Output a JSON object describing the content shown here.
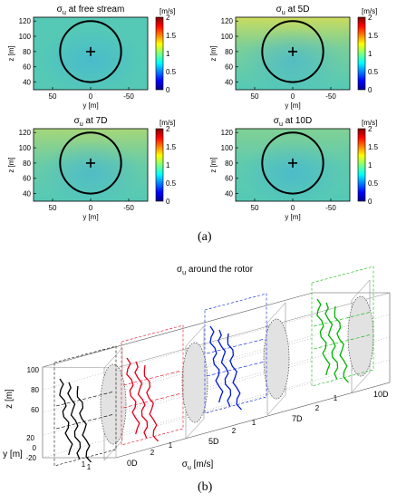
{
  "colors": {
    "field_base": "#55c9b6",
    "panel_top_tint": "#b7d96a",
    "panel_top_tint_strong": "#d9de52",
    "panel_center_tint": "#3fb0de",
    "circle": "#000000",
    "plane_fill": "#e2e2e2",
    "series_colors": [
      "#000000",
      "#e4001b",
      "#0018d6",
      "#00b400"
    ]
  },
  "colorbar": {
    "unit": "[m/s]",
    "ticks": [
      "2",
      "1.5",
      "1",
      "0.5",
      "0"
    ],
    "range": [
      0,
      2
    ],
    "colormap": "jet"
  },
  "panel_a": {
    "label": "(a)",
    "xlabel": "y [m]",
    "ylabel": "z [m]",
    "yticks": [
      "120",
      "100",
      "80",
      "60",
      "40"
    ],
    "xticks": [
      "50",
      "0",
      "-50"
    ],
    "panels": [
      {
        "title_sym": "σ",
        "title_sub": "u",
        "title_rest": " at free stream",
        "tint": "none"
      },
      {
        "title_sym": "σ",
        "title_sub": "u",
        "title_rest": " at 5D",
        "tint": "strong"
      },
      {
        "title_sym": "σ",
        "title_sub": "u",
        "title_rest": " at 7D",
        "tint": "medium"
      },
      {
        "title_sym": "σ",
        "title_sub": "u",
        "title_rest": " at 10D",
        "tint": "light"
      }
    ]
  },
  "panel_b": {
    "label": "(b)",
    "title_sym": "σ",
    "title_sub": "u",
    "title_rest": " around the rotor",
    "zlabel": "z [m]",
    "zticks": [
      "100",
      "80",
      "60"
    ],
    "ylabel": "y [m]",
    "yticks": [
      "20",
      "0",
      "-20"
    ],
    "xlabel_sym": "σ",
    "xlabel_sub": "u",
    "xlabel_rest": " [m/s]",
    "stations": [
      {
        "label": "0D",
        "tick_left": "1",
        "tick_right": "2",
        "color": "#000000"
      },
      {
        "label": "5D",
        "tick_left": "1",
        "tick_right": "2",
        "color": "#e4001b"
      },
      {
        "label": "7D",
        "tick_left": "1",
        "tick_right": "2",
        "color": "#0018d6"
      },
      {
        "label": "10D",
        "tick_left": "1",
        "tick_right": "",
        "color": "#00b400"
      }
    ]
  },
  "chart_data": {
    "type": "heatmap",
    "panel_a": {
      "x_axis": {
        "label": "y [m]",
        "range": [
          75,
          -75
        ],
        "ticks": [
          50,
          0,
          -50
        ]
      },
      "y_axis": {
        "label": "z [m]",
        "range": [
          30,
          125
        ],
        "ticks": [
          40,
          60,
          80,
          100,
          120
        ]
      },
      "colorbar_range": [
        0,
        2
      ],
      "rotor_circle": {
        "center_y": 0,
        "center_z": 80,
        "radius": 40
      },
      "panels": [
        "free stream",
        "5D",
        "7D",
        "10D"
      ]
    },
    "panel_b": {
      "type": "line",
      "stations": [
        "0D",
        "5D",
        "7D",
        "10D"
      ],
      "z_ticks": [
        60,
        80,
        100
      ],
      "y_ticks": [
        20,
        0,
        -20
      ],
      "sigma_u_ticks": [
        1,
        2
      ]
    }
  }
}
